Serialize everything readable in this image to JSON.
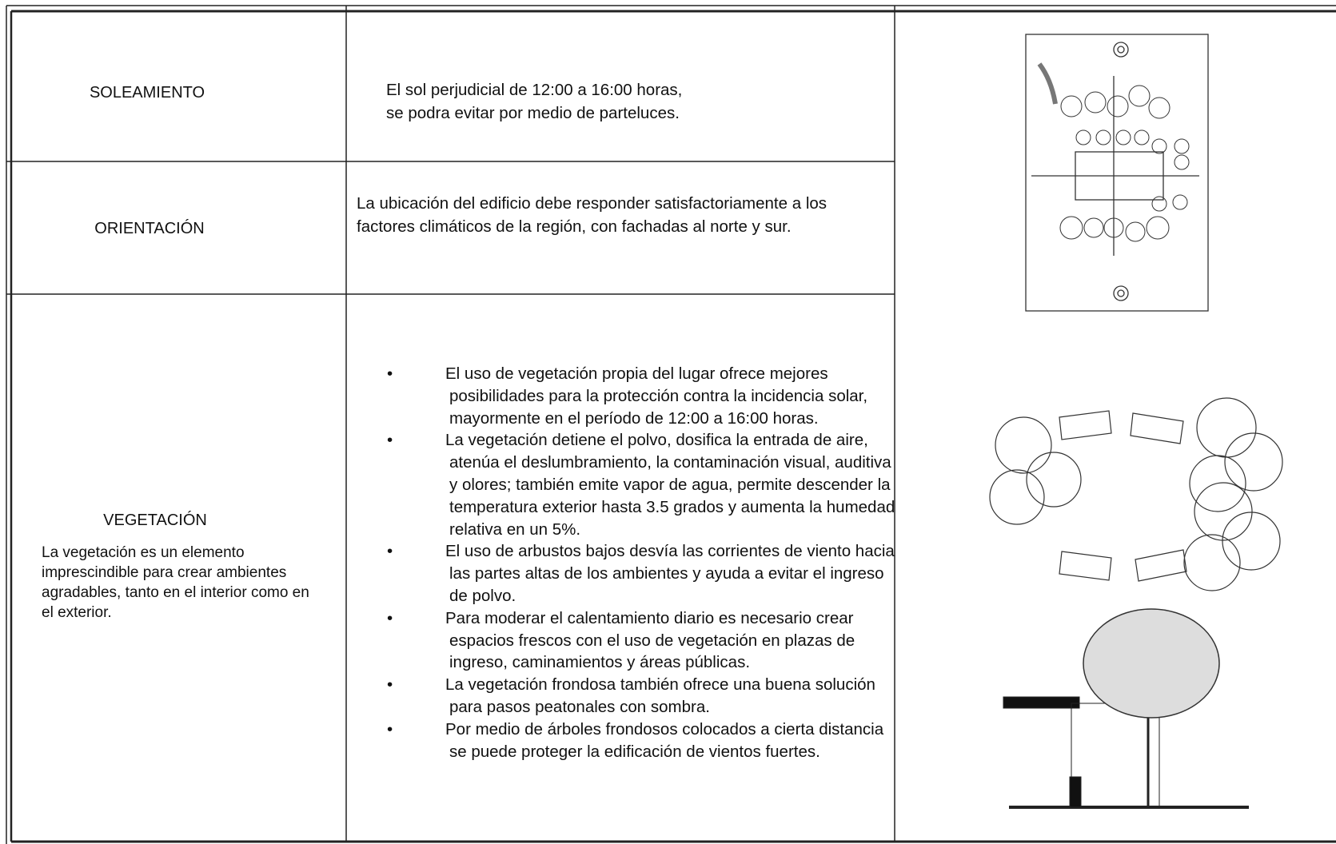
{
  "table": {
    "rows": [
      {
        "label": "SOLEAMIENTO",
        "text": [
          "El sol perjudicial de 12:00 a 16:00 horas,",
          "se podra evitar por medio de parteluces."
        ]
      },
      {
        "label": "ORIENTACIÓN",
        "text": [
          "La ubicación del edificio debe responder satisfactoriamente a los",
          "factores climáticos de la región, con fachadas al norte y sur."
        ]
      },
      {
        "label": "VEGETACIÓN",
        "description": "La vegetación es un elemento imprescindible para crear ambientes agradables, tanto en el interior como en el exterior.",
        "bullets": [
          "El uso de vegetación propia del lugar ofrece mejores posibilidades para la protección contra la incidencia solar, mayormente en el período de 12:00 a 16:00 horas.",
          "La vegetación detiene el polvo, dosifica la entrada de aire, atenúa el deslumbramiento, la contaminación visual, auditiva y olores; también emite vapor de agua, permite descender la temperatura exterior hasta 3.5 grados y aumenta la humedad relativa en un 5%.",
          "El uso de arbustos bajos desvía las corrientes de viento hacia las partes altas de los ambientes y ayuda a evitar el ingreso de polvo.",
          "Para moderar el calentamiento diario es necesario crear espacios frescos con el uso de vegetación en plazas de ingreso, caminamientos y áreas públicas.",
          "La vegetación frondosa también ofrece una buena solución para pasos peatonales con sombra.",
          "Por medio de árboles frondosos colocados a cierta distancia se puede proteger  la edificación de vientos fuertes."
        ]
      }
    ]
  }
}
